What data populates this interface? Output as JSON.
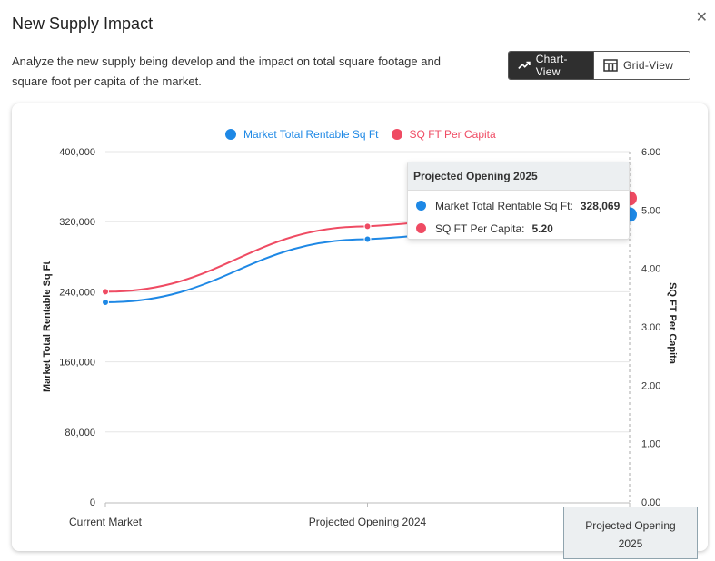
{
  "header": {
    "title": "New Supply Impact",
    "description": "Analyze the new supply being develop and the impact on total square footage and square foot per capita of the market.",
    "close_glyph": "✕"
  },
  "view_toggle": {
    "chart_label": "Chart-View",
    "grid_label": "Grid-View",
    "active": "chart"
  },
  "tooltip": {
    "title": "Projected Opening 2025",
    "rows": [
      {
        "label": "Market Total Rentable Sq Ft:",
        "value": "328,069",
        "color": "#1e88e5"
      },
      {
        "label": "SQ FT Per Capita:",
        "value": "5.20",
        "color": "#ef4b63"
      }
    ]
  },
  "x_tooltip": "Projected Opening 2025",
  "chart_data": {
    "type": "line",
    "categories": [
      "Current Market",
      "Projected Opening 2024",
      "Projected Opening 2025"
    ],
    "series": [
      {
        "name": "Market Total Rentable Sq Ft",
        "axis": "left",
        "color": "#1e88e5",
        "values": [
          228000,
          300000,
          328069
        ]
      },
      {
        "name": "SQ FT Per Capita",
        "axis": "right",
        "color": "#ef4b63",
        "values": [
          3.6,
          4.72,
          5.2
        ]
      }
    ],
    "y_left": {
      "label": "Market Total Rentable Sq Ft",
      "min": 0,
      "max": 400000,
      "ticks": [
        "0",
        "80,000",
        "160,000",
        "240,000",
        "320,000",
        "400,000"
      ]
    },
    "y_right": {
      "label": "SQ FT Per Capita",
      "min": 0,
      "max": 6,
      "ticks": [
        "0.00",
        "1.00",
        "2.00",
        "3.00",
        "4.00",
        "5.00",
        "6.00"
      ]
    },
    "grid": true,
    "legend": "top"
  }
}
